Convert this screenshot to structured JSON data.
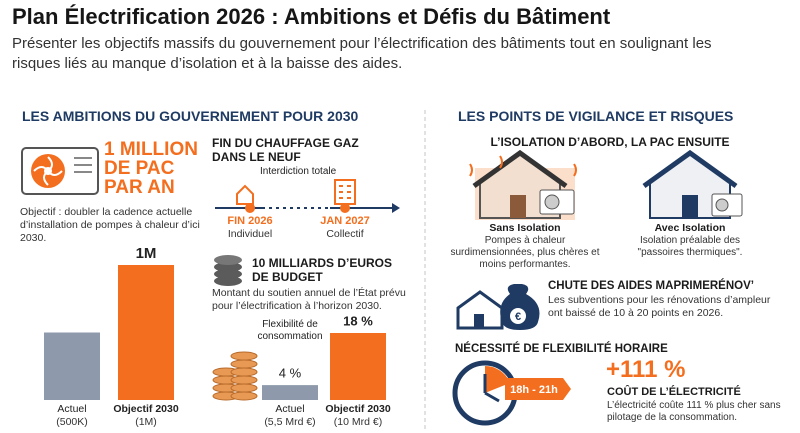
{
  "header": {
    "title": "Plan Électrification 2026 : Ambitions et Défis du Bâtiment",
    "subtitle": "Présenter les objectifs massifs du gouvernement pour l’électrification des bâtiments tout en soulignant les risques liés au manque d’isolation et à la baisse des aides."
  },
  "ambitions": {
    "heading": "LES AMBITIONS DU GOUVERNEMENT POUR 2030",
    "pac": {
      "headline": "1 MILLION DE PAC PAR AN",
      "description": "Objectif : doubler la cadence actuelle d’installation de pompes à chaleur d’ici 2030.",
      "chart": {
        "type": "bar",
        "bars": [
          {
            "value": 500000,
            "name": "Actuel",
            "detail": "(500K)",
            "color": "#8e9aab"
          },
          {
            "value": 1000000,
            "label": "1M",
            "name": "Objectif 2030",
            "detail": "(1M)",
            "color": "#f36f1f"
          }
        ]
      }
    },
    "gas": {
      "heading": "FIN DU CHAUFFAGE GAZ DANS LE NEUF",
      "note": "Interdiction totale",
      "milestones": [
        {
          "date": "FIN 2026",
          "scope": "Individuel"
        },
        {
          "date": "JAN 2027",
          "scope": "Collectif"
        }
      ]
    },
    "budget": {
      "headline": "10 MILLIARDS D’EUROS DE BUDGET",
      "description": "Montant du soutien annuel de l’État prévu pour l’électrification à l’horizon 2030.",
      "chart_title": "Flexibilité de consommation",
      "chart": {
        "type": "bar",
        "bars": [
          {
            "value": 4,
            "label": "4 %",
            "name": "Actuel",
            "detail": "(5,5 Mrd €)",
            "color": "#8e9aab"
          },
          {
            "value": 18,
            "label": "18 %",
            "name": "Objectif 2030",
            "detail": "(10 Mrd €)",
            "color": "#f36f1f"
          }
        ]
      }
    }
  },
  "risks": {
    "heading": "LES POINTS DE VIGILANCE ET RISQUES",
    "insulation": {
      "heading": "L’ISOLATION D’ABORD, LA PAC ENSUITE",
      "cases": [
        {
          "title": "Sans Isolation",
          "text": "Pompes à chaleur surdimensionnées, plus chères et moins performantes."
        },
        {
          "title": "Avec Isolation",
          "text": "Isolation préalable des \"passoires thermiques\"."
        }
      ]
    },
    "aid": {
      "heading": "CHUTE DES AIDES MAPRIMERÉNOV’",
      "icon": "€",
      "text": "Les subventions pour les rénovations d’ampleur ont baissé de 10 à 20 points en 2026."
    },
    "flex": {
      "heading": "NÉCESSITÉ DE FLEXIBILITÉ HORAIRE",
      "window": "18h - 21h",
      "increase": "+111 %",
      "increase_label": "COÛT DE L’ÉLECTRICITÉ",
      "text": "L’électricité coûte 111 % plus cher sans pilotage de la consommation."
    }
  }
}
